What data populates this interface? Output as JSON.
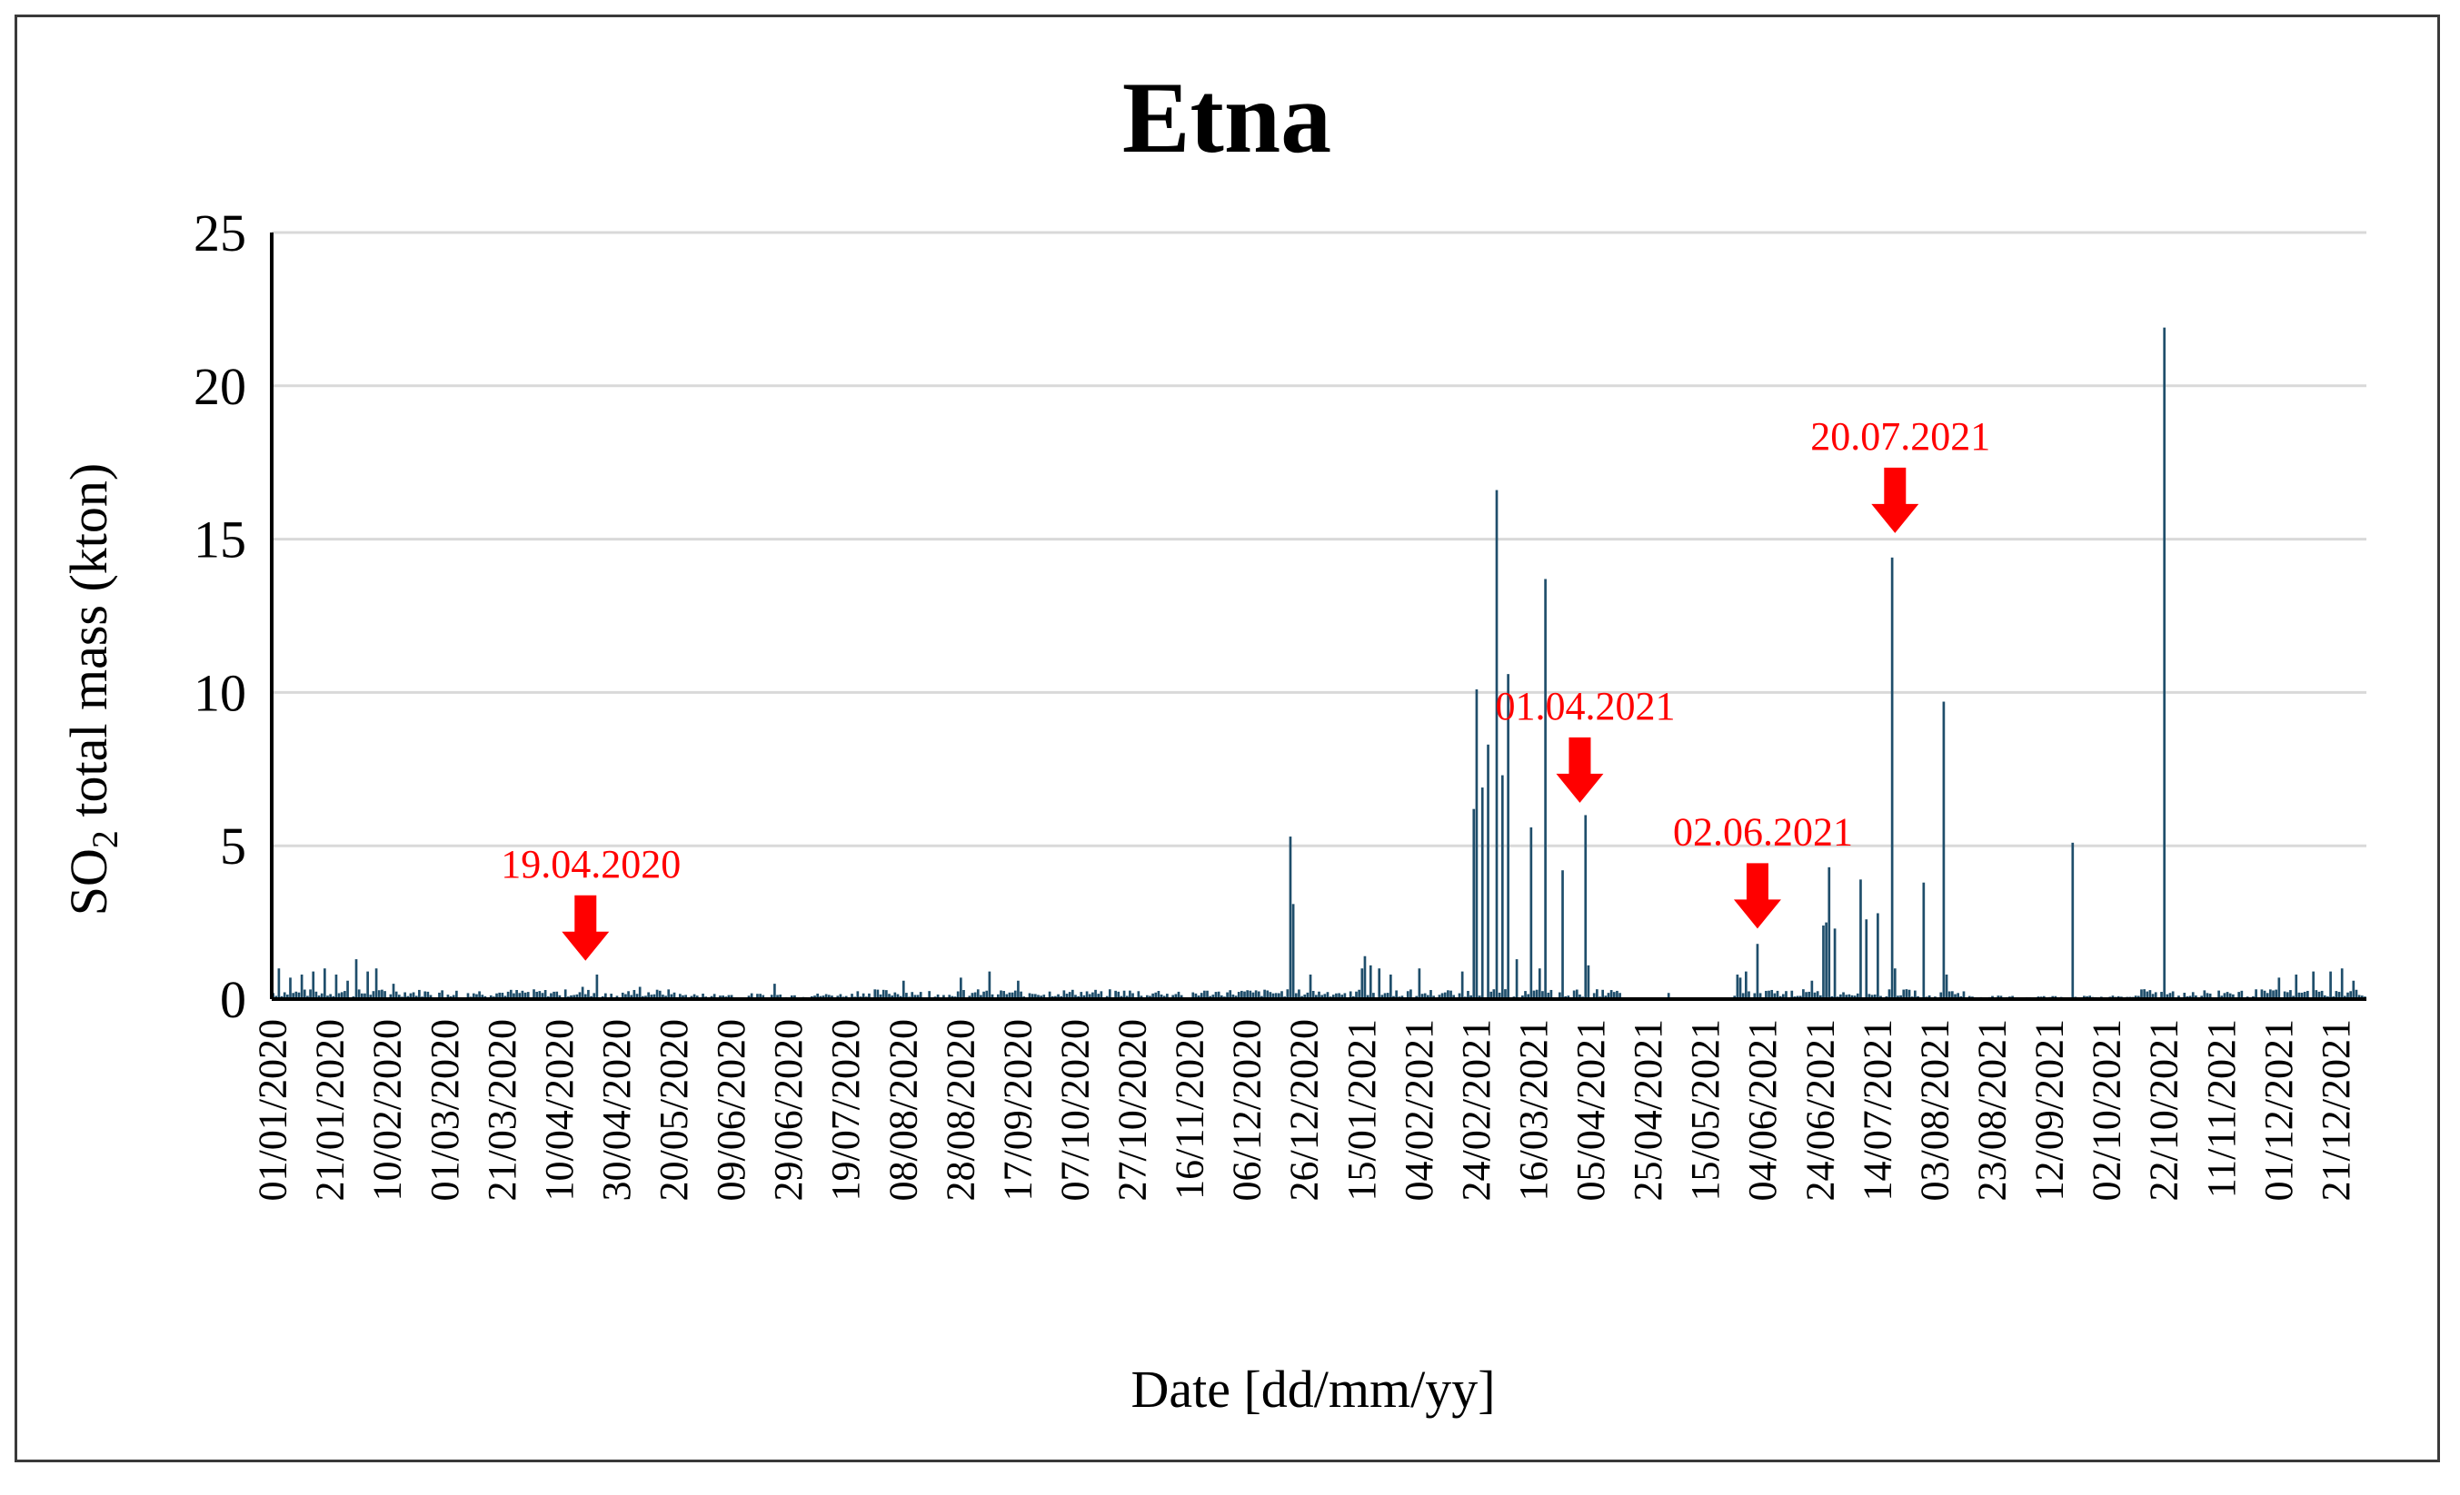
{
  "chart_data": {
    "type": "bar",
    "title": "Etna",
    "xlabel": "Date [dd/mm/yy]",
    "ylabel_main": "SO",
    "ylabel_sub": "2",
    "ylabel_rest": " total  mass  (kton)",
    "ylim": [
      0,
      25
    ],
    "yticks": [
      "0",
      "5",
      "10",
      "15",
      "20",
      "25"
    ],
    "grid": true,
    "bar_color": "#1f4e6b",
    "annotation_color": "#ff0000",
    "x_tick_labels": [
      "01/01/2020",
      "21/01/2020",
      "10/02/2020",
      "01/03/2020",
      "21/03/2020",
      "10/04/2020",
      "30/04/2020",
      "20/05/2020",
      "09/06/2020",
      "29/06/2020",
      "19/07/2020",
      "08/08/2020",
      "28/08/2020",
      "17/09/2020",
      "07/10/2020",
      "27/10/2020",
      "16/11/2020",
      "06/12/2020",
      "26/12/2020",
      "15/01/2021",
      "04/02/2021",
      "24/02/2021",
      "16/03/2021",
      "05/04/2021",
      "25/04/2021",
      "15/05/2021",
      "04/06/2021",
      "24/06/2021",
      "14/07/2021",
      "03/08/2021",
      "23/08/2021",
      "12/09/2021",
      "02/10/2021",
      "22/10/2021",
      "11/11/2021",
      "01/12/2021",
      "21/12/2021"
    ],
    "num_days": 731,
    "baseline_level": 0.25,
    "series": [
      {
        "name": "SO2 total mass",
        "peaks": [
          {
            "day": 2,
            "value": 1.0
          },
          {
            "day": 6,
            "value": 0.7
          },
          {
            "day": 10,
            "value": 0.8
          },
          {
            "day": 14,
            "value": 0.9
          },
          {
            "day": 18,
            "value": 1.0
          },
          {
            "day": 22,
            "value": 0.8
          },
          {
            "day": 26,
            "value": 0.6
          },
          {
            "day": 29,
            "value": 1.3
          },
          {
            "day": 33,
            "value": 0.9
          },
          {
            "day": 36,
            "value": 1.0
          },
          {
            "day": 42,
            "value": 0.5
          },
          {
            "day": 108,
            "value": 0.4
          },
          {
            "day": 113,
            "value": 0.8
          },
          {
            "day": 128,
            "value": 0.4
          },
          {
            "day": 175,
            "value": 0.5
          },
          {
            "day": 220,
            "value": 0.6
          },
          {
            "day": 240,
            "value": 0.7
          },
          {
            "day": 250,
            "value": 0.9
          },
          {
            "day": 260,
            "value": 0.6
          },
          {
            "day": 355,
            "value": 5.3
          },
          {
            "day": 356,
            "value": 3.1
          },
          {
            "day": 362,
            "value": 0.8
          },
          {
            "day": 380,
            "value": 1.0
          },
          {
            "day": 381,
            "value": 1.4
          },
          {
            "day": 383,
            "value": 1.1
          },
          {
            "day": 386,
            "value": 1.0
          },
          {
            "day": 390,
            "value": 0.8
          },
          {
            "day": 400,
            "value": 1.0
          },
          {
            "day": 415,
            "value": 0.9
          },
          {
            "day": 419,
            "value": 6.2
          },
          {
            "day": 420,
            "value": 10.1
          },
          {
            "day": 422,
            "value": 6.9
          },
          {
            "day": 424,
            "value": 8.3
          },
          {
            "day": 427,
            "value": 16.6
          },
          {
            "day": 429,
            "value": 7.3
          },
          {
            "day": 431,
            "value": 10.6
          },
          {
            "day": 434,
            "value": 1.3
          },
          {
            "day": 439,
            "value": 5.6
          },
          {
            "day": 442,
            "value": 1.0
          },
          {
            "day": 444,
            "value": 13.7
          },
          {
            "day": 450,
            "value": 4.2
          },
          {
            "day": 458,
            "value": 6.0
          },
          {
            "day": 459,
            "value": 1.1
          },
          {
            "day": 470,
            "value": 0.2
          },
          {
            "day": 487,
            "value": 0.2
          },
          {
            "day": 511,
            "value": 0.8
          },
          {
            "day": 512,
            "value": 0.7
          },
          {
            "day": 514,
            "value": 0.9
          },
          {
            "day": 518,
            "value": 1.8
          },
          {
            "day": 537,
            "value": 0.6
          },
          {
            "day": 541,
            "value": 2.4
          },
          {
            "day": 542,
            "value": 2.5
          },
          {
            "day": 543,
            "value": 4.3
          },
          {
            "day": 545,
            "value": 2.3
          },
          {
            "day": 554,
            "value": 3.9
          },
          {
            "day": 556,
            "value": 2.6
          },
          {
            "day": 560,
            "value": 2.8
          },
          {
            "day": 565,
            "value": 14.4
          },
          {
            "day": 566,
            "value": 1.0
          },
          {
            "day": 576,
            "value": 3.8
          },
          {
            "day": 583,
            "value": 9.7
          },
          {
            "day": 584,
            "value": 0.8
          },
          {
            "day": 628,
            "value": 5.1
          },
          {
            "day": 660,
            "value": 21.9
          },
          {
            "day": 662,
            "value": 0.2
          },
          {
            "day": 700,
            "value": 0.7
          },
          {
            "day": 706,
            "value": 0.8
          },
          {
            "day": 712,
            "value": 0.9
          },
          {
            "day": 718,
            "value": 0.9
          },
          {
            "day": 722,
            "value": 1.0
          },
          {
            "day": 726,
            "value": 0.6
          }
        ]
      }
    ],
    "annotations": [
      {
        "label": "19.04.2020",
        "day": 109
      },
      {
        "label": "01.04.2021",
        "day": 456
      },
      {
        "label": "02.06.2021",
        "day": 518
      },
      {
        "label": "20.07.2021",
        "day": 566
      }
    ]
  }
}
